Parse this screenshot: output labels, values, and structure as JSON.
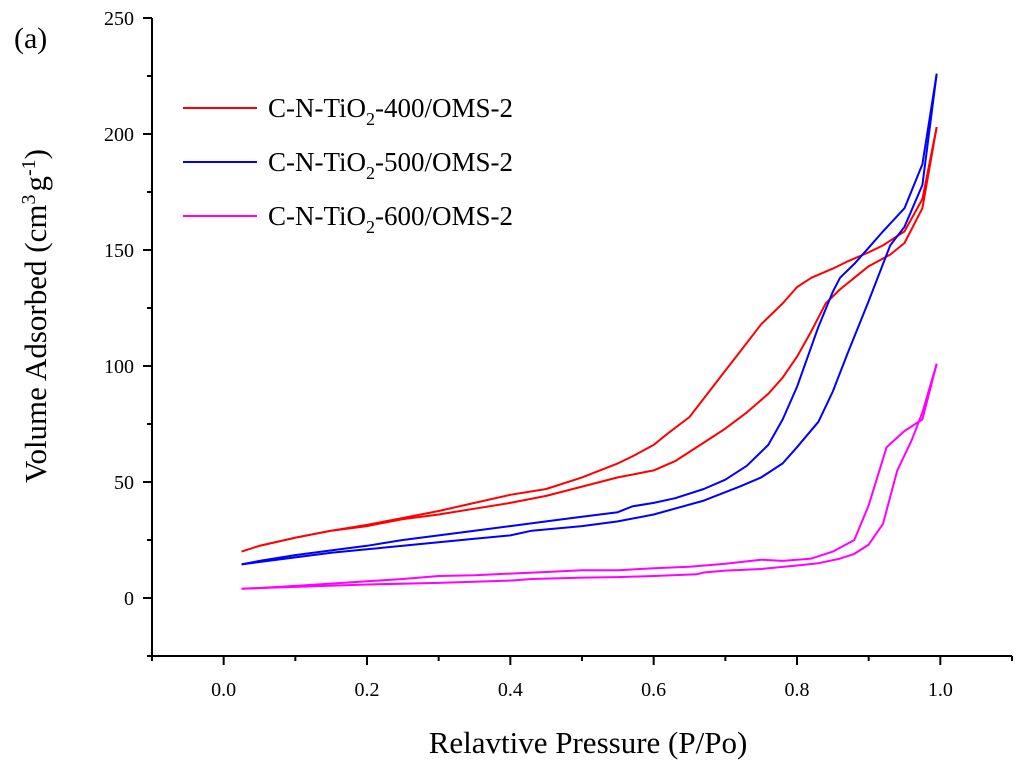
{
  "panel_label": "(a)",
  "chart_data": {
    "type": "line",
    "title": "",
    "xlabel": "Relavtive Pressure (P/Po)",
    "ylabel": "Volume Adsorbed (cm",
    "ylabel_sup": "3",
    "ylabel_g": "g",
    "ylabel_g_sup": "-1",
    "ylabel_close": ")",
    "xlim": [
      -0.1,
      1.1
    ],
    "ylim": [
      -25,
      250
    ],
    "x_ticks": [
      0.0,
      0.2,
      0.4,
      0.6,
      0.8,
      1.0
    ],
    "x_tick_labels": [
      "0.0",
      "0.2",
      "0.4",
      "0.6",
      "0.8",
      "1.0"
    ],
    "y_ticks": [
      0,
      50,
      100,
      150,
      200,
      250
    ],
    "y_tick_labels": [
      "0",
      "50",
      "100",
      "150",
      "200",
      "250"
    ],
    "grid": false,
    "legend_position": "top-left",
    "series": [
      {
        "name": "C-N-TiO2-400/OMS-2",
        "label_pre": "C-N-TiO",
        "label_sub": "2",
        "label_post": "-400/OMS-2",
        "color": "#ff0000",
        "adsorption": [
          [
            0.025,
            20
          ],
          [
            0.05,
            22.5
          ],
          [
            0.1,
            26
          ],
          [
            0.15,
            29
          ],
          [
            0.2,
            31
          ],
          [
            0.25,
            34
          ],
          [
            0.3,
            36
          ],
          [
            0.35,
            38.5
          ],
          [
            0.4,
            41
          ],
          [
            0.45,
            44
          ],
          [
            0.5,
            48
          ],
          [
            0.55,
            52
          ],
          [
            0.6,
            55
          ],
          [
            0.63,
            59
          ],
          [
            0.67,
            67
          ],
          [
            0.7,
            73
          ],
          [
            0.73,
            80
          ],
          [
            0.76,
            88
          ],
          [
            0.78,
            95
          ],
          [
            0.8,
            104
          ],
          [
            0.82,
            115
          ],
          [
            0.84,
            127
          ],
          [
            0.86,
            133
          ],
          [
            0.88,
            138
          ],
          [
            0.9,
            143
          ],
          [
            0.93,
            148
          ],
          [
            0.95,
            153
          ],
          [
            0.975,
            168
          ],
          [
            0.995,
            203
          ]
        ],
        "desorption": [
          [
            0.995,
            203
          ],
          [
            0.975,
            172
          ],
          [
            0.95,
            158
          ],
          [
            0.92,
            152
          ],
          [
            0.9,
            149
          ],
          [
            0.87,
            145
          ],
          [
            0.85,
            142
          ],
          [
            0.82,
            138
          ],
          [
            0.8,
            134
          ],
          [
            0.78,
            127
          ],
          [
            0.75,
            118
          ],
          [
            0.72,
            106
          ],
          [
            0.7,
            98
          ],
          [
            0.67,
            86
          ],
          [
            0.65,
            78
          ],
          [
            0.62,
            71
          ],
          [
            0.6,
            66
          ],
          [
            0.57,
            61
          ],
          [
            0.55,
            58
          ],
          [
            0.5,
            52
          ],
          [
            0.45,
            47
          ],
          [
            0.4,
            44.5
          ],
          [
            0.35,
            41
          ],
          [
            0.3,
            37.5
          ],
          [
            0.25,
            34.5
          ],
          [
            0.2,
            31.5
          ],
          [
            0.15,
            29
          ],
          [
            0.1,
            26
          ],
          [
            0.05,
            22.5
          ]
        ]
      },
      {
        "name": "C-N-TiO2-500/OMS-2",
        "label_pre": "C-N-TiO",
        "label_sub": "2",
        "label_post": "-500/OMS-2",
        "color": "#0000ff",
        "adsorption": [
          [
            0.025,
            14.5
          ],
          [
            0.05,
            15.5
          ],
          [
            0.1,
            17.5
          ],
          [
            0.15,
            19.5
          ],
          [
            0.2,
            21
          ],
          [
            0.25,
            22.5
          ],
          [
            0.3,
            24
          ],
          [
            0.35,
            25.5
          ],
          [
            0.4,
            27
          ],
          [
            0.43,
            29
          ],
          [
            0.5,
            31
          ],
          [
            0.55,
            33
          ],
          [
            0.6,
            36
          ],
          [
            0.67,
            42
          ],
          [
            0.72,
            48
          ],
          [
            0.75,
            52
          ],
          [
            0.78,
            58
          ],
          [
            0.8,
            65
          ],
          [
            0.83,
            76
          ],
          [
            0.85,
            89
          ],
          [
            0.87,
            105
          ],
          [
            0.9,
            128
          ],
          [
            0.93,
            152
          ],
          [
            0.95,
            160
          ],
          [
            0.975,
            178
          ],
          [
            0.995,
            226
          ]
        ],
        "desorption": [
          [
            0.995,
            226
          ],
          [
            0.975,
            187
          ],
          [
            0.95,
            168
          ],
          [
            0.92,
            158
          ],
          [
            0.9,
            151
          ],
          [
            0.88,
            144
          ],
          [
            0.86,
            138
          ],
          [
            0.85,
            132
          ],
          [
            0.83,
            117
          ],
          [
            0.8,
            91
          ],
          [
            0.78,
            77
          ],
          [
            0.76,
            66
          ],
          [
            0.73,
            57
          ],
          [
            0.7,
            51
          ],
          [
            0.67,
            47
          ],
          [
            0.63,
            43
          ],
          [
            0.6,
            41
          ],
          [
            0.57,
            39.5
          ],
          [
            0.55,
            37
          ],
          [
            0.5,
            35
          ],
          [
            0.45,
            33
          ],
          [
            0.4,
            31
          ],
          [
            0.35,
            29
          ],
          [
            0.3,
            27
          ],
          [
            0.25,
            25
          ],
          [
            0.2,
            22.5
          ],
          [
            0.15,
            20.5
          ],
          [
            0.1,
            18.5
          ],
          [
            0.05,
            16
          ],
          [
            0.025,
            14.5
          ]
        ]
      },
      {
        "name": "C-N-TiO2-600/OMS-2",
        "label_pre": "C-N-TiO",
        "label_sub": "2",
        "label_post": "-600/OMS-2",
        "color": "#ff00ff",
        "adsorption": [
          [
            0.025,
            4
          ],
          [
            0.1,
            4.8
          ],
          [
            0.2,
            5.8
          ],
          [
            0.3,
            6.5
          ],
          [
            0.4,
            7.5
          ],
          [
            0.43,
            8.2
          ],
          [
            0.5,
            8.8
          ],
          [
            0.55,
            9
          ],
          [
            0.6,
            9.5
          ],
          [
            0.66,
            10.2
          ],
          [
            0.67,
            11
          ],
          [
            0.7,
            11.8
          ],
          [
            0.75,
            12.5
          ],
          [
            0.8,
            14
          ],
          [
            0.83,
            15
          ],
          [
            0.86,
            17
          ],
          [
            0.88,
            19
          ],
          [
            0.9,
            23
          ],
          [
            0.92,
            32
          ],
          [
            0.94,
            55
          ],
          [
            0.96,
            68
          ],
          [
            0.975,
            80
          ],
          [
            0.995,
            101
          ]
        ],
        "desorption": [
          [
            0.995,
            101
          ],
          [
            0.975,
            77
          ],
          [
            0.95,
            72
          ],
          [
            0.925,
            65
          ],
          [
            0.9,
            40
          ],
          [
            0.88,
            25
          ],
          [
            0.85,
            20
          ],
          [
            0.82,
            17
          ],
          [
            0.78,
            16
          ],
          [
            0.75,
            16.5
          ],
          [
            0.7,
            14.8
          ],
          [
            0.65,
            13.5
          ],
          [
            0.6,
            12.8
          ],
          [
            0.55,
            12
          ],
          [
            0.5,
            12
          ],
          [
            0.45,
            11.2
          ],
          [
            0.4,
            10.5
          ],
          [
            0.35,
            9.8
          ],
          [
            0.3,
            9.5
          ],
          [
            0.25,
            8.2
          ],
          [
            0.2,
            7.2
          ],
          [
            0.15,
            6.2
          ],
          [
            0.1,
            5.2
          ],
          [
            0.05,
            4.3
          ],
          [
            0.025,
            4
          ]
        ]
      }
    ]
  }
}
